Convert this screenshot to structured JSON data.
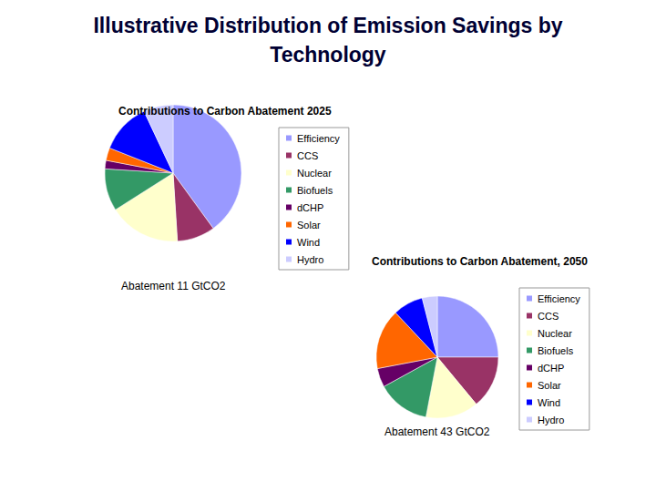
{
  "title": "Illustrative Distribution of Emission Savings by Technology",
  "chart_data": [
    {
      "type": "pie",
      "title": "Contributions to Carbon Abatement 2025",
      "annotation": "Abatement 11 GtCO2",
      "categories": [
        "Efficiency",
        "CCS",
        "Nuclear",
        "Biofuels",
        "dCHP",
        "Solar",
        "Wind",
        "Hydro"
      ],
      "values": [
        40,
        9,
        17,
        10,
        2,
        3,
        12,
        7
      ],
      "colors": [
        "#9999ff",
        "#993366",
        "#ffffcc",
        "#339966",
        "#660066",
        "#ff6600",
        "#0000ff",
        "#ccccff"
      ],
      "legend": "right"
    },
    {
      "type": "pie",
      "title": "Contributions to Carbon Abatement, 2050",
      "annotation": "Abatement 43 GtCO2",
      "categories": [
        "Efficiency",
        "CCS",
        "Nuclear",
        "Biofuels",
        "dCHP",
        "Solar",
        "Wind",
        "Hydro"
      ],
      "values": [
        25,
        14,
        14,
        14,
        5,
        16,
        8,
        4
      ],
      "colors": [
        "#9999ff",
        "#993366",
        "#ffffcc",
        "#339966",
        "#660066",
        "#ff6600",
        "#0000ff",
        "#ccccff"
      ],
      "legend": "right"
    }
  ]
}
